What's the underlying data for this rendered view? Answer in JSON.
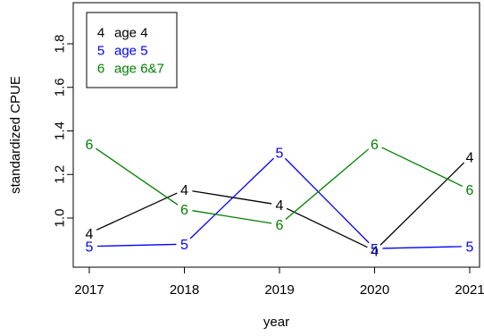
{
  "chart_data": {
    "type": "line",
    "title": "",
    "xlabel": "year",
    "ylabel": "standardized CPUE",
    "x": [
      2017,
      2018,
      2019,
      2020,
      2021
    ],
    "xlim": [
      2017,
      2021
    ],
    "ylim": [
      0.8,
      1.95
    ],
    "yticks": [
      "1.0",
      "1.2",
      "1.4",
      "1.6",
      "1.8"
    ],
    "xticks": [
      "2017",
      "2018",
      "2019",
      "2020",
      "2021"
    ],
    "grid": false,
    "legend_position": "top-left",
    "series": [
      {
        "name": "age 4",
        "symbol": "4",
        "color": "#000000",
        "values": [
          0.93,
          1.13,
          1.06,
          0.85,
          1.28
        ]
      },
      {
        "name": "age 5",
        "symbol": "5",
        "color": "#0000ff",
        "values": [
          0.87,
          0.88,
          1.3,
          0.86,
          0.87
        ]
      },
      {
        "name": "age 6&7",
        "symbol": "6",
        "color": "#008000",
        "values": [
          1.34,
          1.04,
          0.97,
          1.34,
          1.13
        ]
      }
    ]
  }
}
